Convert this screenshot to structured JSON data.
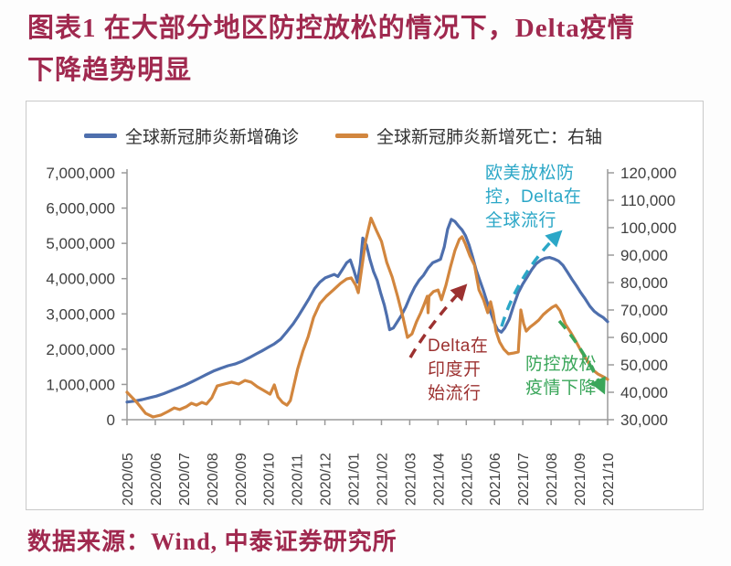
{
  "title": {
    "line1": "图表1 在大部分地区防控放松的情况下，Delta疫情",
    "line2": "下降趋势明显"
  },
  "source": {
    "text": "数据来源：Wind, 中泰证券研究所"
  },
  "colors": {
    "title_red": "#a0294f",
    "confirmed_blue": "#4e6fad",
    "deaths_orange": "#d2863e",
    "axis_text": "#404040",
    "axis_line": "#9a9a9a",
    "panel_border": "#c9c9c9"
  },
  "chart_data": {
    "type": "line",
    "grid": false,
    "legend_position": "top",
    "x_labels": [
      "2020/05",
      "2020/06",
      "2020/07",
      "2020/08",
      "2020/09",
      "2020/10",
      "2020/11",
      "2020/12",
      "2021/01",
      "2021/02",
      "2021/03",
      "2021/04",
      "2021/05",
      "2021/06",
      "2021/07",
      "2021/08",
      "2021/09",
      "2021/10"
    ],
    "left_axis": {
      "min": 0,
      "max": 7000000,
      "step": 1000000,
      "labels": [
        "7,000,000",
        "6,000,000",
        "5,000,000",
        "4,000,000",
        "3,000,000",
        "2,000,000",
        "1,000,000",
        "0"
      ]
    },
    "right_axis": {
      "min": 30000,
      "max": 120000,
      "step": 10000,
      "labels": [
        "120,000",
        "110,000",
        "100,000",
        "90,000",
        "80,000",
        "70,000",
        "60,000",
        "50,000",
        "40,000",
        "30,000"
      ]
    },
    "series": [
      {
        "name": "全球新冠肺炎新增确诊",
        "axis": "left",
        "color": "#4e6fad",
        "points": [
          [
            0.0,
            500000
          ],
          [
            0.28,
            530000
          ],
          [
            0.54,
            570000
          ],
          [
            0.79,
            620000
          ],
          [
            1.04,
            670000
          ],
          [
            1.3,
            740000
          ],
          [
            1.55,
            820000
          ],
          [
            1.8,
            900000
          ],
          [
            2.05,
            980000
          ],
          [
            2.31,
            1080000
          ],
          [
            2.56,
            1180000
          ],
          [
            2.81,
            1280000
          ],
          [
            3.06,
            1380000
          ],
          [
            3.32,
            1460000
          ],
          [
            3.57,
            1530000
          ],
          [
            3.82,
            1580000
          ],
          [
            4.08,
            1660000
          ],
          [
            4.33,
            1760000
          ],
          [
            4.58,
            1870000
          ],
          [
            4.77,
            1950000
          ],
          [
            4.99,
            2050000
          ],
          [
            5.21,
            2150000
          ],
          [
            5.43,
            2280000
          ],
          [
            5.66,
            2500000
          ],
          [
            5.88,
            2720000
          ],
          [
            6.07,
            2950000
          ],
          [
            6.26,
            3200000
          ],
          [
            6.45,
            3450000
          ],
          [
            6.64,
            3720000
          ],
          [
            6.82,
            3900000
          ],
          [
            7.01,
            4020000
          ],
          [
            7.2,
            4080000
          ],
          [
            7.33,
            4120000
          ],
          [
            7.46,
            4060000
          ],
          [
            7.61,
            4250000
          ],
          [
            7.77,
            4450000
          ],
          [
            7.9,
            4530000
          ],
          [
            8.02,
            4250000
          ],
          [
            8.15,
            3900000
          ],
          [
            8.25,
            4400000
          ],
          [
            8.34,
            5150000
          ],
          [
            8.47,
            4950000
          ],
          [
            8.59,
            4550000
          ],
          [
            8.72,
            4200000
          ],
          [
            8.85,
            3950000
          ],
          [
            8.97,
            3600000
          ],
          [
            9.1,
            3250000
          ],
          [
            9.19,
            2950000
          ],
          [
            9.29,
            2550000
          ],
          [
            9.42,
            2600000
          ],
          [
            9.54,
            2750000
          ],
          [
            9.7,
            2950000
          ],
          [
            9.86,
            3200000
          ],
          [
            10.02,
            3500000
          ],
          [
            10.17,
            3750000
          ],
          [
            10.33,
            3950000
          ],
          [
            10.49,
            4100000
          ],
          [
            10.65,
            4300000
          ],
          [
            10.81,
            4450000
          ],
          [
            10.96,
            4500000
          ],
          [
            11.09,
            4550000
          ],
          [
            11.22,
            4900000
          ],
          [
            11.34,
            5400000
          ],
          [
            11.47,
            5680000
          ],
          [
            11.6,
            5620000
          ],
          [
            11.72,
            5500000
          ],
          [
            11.85,
            5380000
          ],
          [
            11.97,
            5220000
          ],
          [
            12.1,
            4950000
          ],
          [
            12.23,
            4600000
          ],
          [
            12.35,
            4250000
          ],
          [
            12.48,
            3950000
          ],
          [
            12.61,
            3650000
          ],
          [
            12.73,
            3350000
          ],
          [
            12.86,
            3050000
          ],
          [
            12.99,
            2750000
          ],
          [
            13.11,
            2550000
          ],
          [
            13.24,
            2480000
          ],
          [
            13.36,
            2600000
          ],
          [
            13.52,
            2850000
          ],
          [
            13.68,
            3250000
          ],
          [
            13.84,
            3600000
          ],
          [
            14.0,
            3850000
          ],
          [
            14.16,
            4050000
          ],
          [
            14.31,
            4250000
          ],
          [
            14.47,
            4420000
          ],
          [
            14.63,
            4520000
          ],
          [
            14.79,
            4580000
          ],
          [
            14.95,
            4600000
          ],
          [
            15.1,
            4560000
          ],
          [
            15.26,
            4500000
          ],
          [
            15.42,
            4380000
          ],
          [
            15.58,
            4180000
          ],
          [
            15.74,
            3980000
          ],
          [
            15.89,
            3800000
          ],
          [
            16.05,
            3600000
          ],
          [
            16.21,
            3420000
          ],
          [
            16.37,
            3220000
          ],
          [
            16.52,
            3080000
          ],
          [
            16.68,
            2980000
          ],
          [
            16.84,
            2900000
          ],
          [
            17.0,
            2780000
          ]
        ]
      },
      {
        "name": "全球新冠肺炎新增死亡：右轴",
        "axis": "right",
        "color": "#d2863e",
        "points": [
          [
            0.0,
            40000
          ],
          [
            0.35,
            36300
          ],
          [
            0.66,
            32300
          ],
          [
            0.92,
            31000
          ],
          [
            1.2,
            31700
          ],
          [
            1.45,
            33000
          ],
          [
            1.67,
            34300
          ],
          [
            1.86,
            33700
          ],
          [
            2.09,
            34700
          ],
          [
            2.28,
            36000
          ],
          [
            2.46,
            35300
          ],
          [
            2.65,
            36300
          ],
          [
            2.81,
            35700
          ],
          [
            3.0,
            38000
          ],
          [
            3.19,
            42300
          ],
          [
            3.44,
            43000
          ],
          [
            3.7,
            43700
          ],
          [
            3.95,
            43000
          ],
          [
            4.17,
            44300
          ],
          [
            4.39,
            43700
          ],
          [
            4.61,
            42000
          ],
          [
            4.83,
            40700
          ],
          [
            5.06,
            39300
          ],
          [
            5.21,
            42700
          ],
          [
            5.34,
            38300
          ],
          [
            5.5,
            36300
          ],
          [
            5.66,
            35300
          ],
          [
            5.78,
            37000
          ],
          [
            6.03,
            48300
          ],
          [
            6.22,
            55000
          ],
          [
            6.41,
            60300
          ],
          [
            6.6,
            67300
          ],
          [
            6.82,
            72300
          ],
          [
            7.05,
            75000
          ],
          [
            7.3,
            77300
          ],
          [
            7.55,
            79700
          ],
          [
            7.77,
            81300
          ],
          [
            7.93,
            81700
          ],
          [
            8.09,
            79000
          ],
          [
            8.18,
            76300
          ],
          [
            8.31,
            85700
          ],
          [
            8.44,
            95000
          ],
          [
            8.63,
            103500
          ],
          [
            8.82,
            99000
          ],
          [
            9.0,
            95000
          ],
          [
            9.19,
            87300
          ],
          [
            9.38,
            82000
          ],
          [
            9.57,
            75000
          ],
          [
            9.76,
            67300
          ],
          [
            9.92,
            60000
          ],
          [
            10.08,
            61300
          ],
          [
            10.24,
            65700
          ],
          [
            10.39,
            69000
          ],
          [
            10.52,
            72300
          ],
          [
            10.62,
            75000
          ],
          [
            10.65,
            69000
          ],
          [
            10.68,
            75000
          ],
          [
            10.84,
            76700
          ],
          [
            11.0,
            77300
          ],
          [
            11.12,
            73700
          ],
          [
            11.28,
            79000
          ],
          [
            11.44,
            85700
          ],
          [
            11.6,
            91700
          ],
          [
            11.75,
            95700
          ],
          [
            11.85,
            96700
          ],
          [
            11.97,
            94000
          ],
          [
            12.13,
            89700
          ],
          [
            12.29,
            86300
          ],
          [
            12.45,
            77300
          ],
          [
            12.61,
            73700
          ],
          [
            12.76,
            69000
          ],
          [
            12.86,
            73000
          ],
          [
            12.95,
            69000
          ],
          [
            13.05,
            62300
          ],
          [
            13.18,
            58300
          ],
          [
            13.33,
            55700
          ],
          [
            13.49,
            54000
          ],
          [
            13.68,
            54300
          ],
          [
            13.84,
            54700
          ],
          [
            13.93,
            70000
          ],
          [
            14.03,
            65000
          ],
          [
            14.12,
            62300
          ],
          [
            14.25,
            63700
          ],
          [
            14.41,
            65000
          ],
          [
            14.56,
            66300
          ],
          [
            14.72,
            68300
          ],
          [
            14.88,
            69700
          ],
          [
            15.04,
            71000
          ],
          [
            15.17,
            71700
          ],
          [
            15.32,
            69700
          ],
          [
            15.51,
            64700
          ],
          [
            15.7,
            61700
          ],
          [
            15.89,
            58300
          ],
          [
            16.08,
            54700
          ],
          [
            16.27,
            51700
          ],
          [
            16.46,
            48300
          ],
          [
            16.65,
            46700
          ],
          [
            16.84,
            45700
          ],
          [
            17.0,
            44700
          ]
        ]
      }
    ],
    "annotations": [
      {
        "text": "欧美放松防\n控，Delta在\n全球流行",
        "color": "#2ba7c7",
        "arrow": {
          "from": [
            549,
            357
          ],
          "via": [
            566,
            300
          ],
          "to": [
            612,
            255
          ]
        }
      },
      {
        "text": "Delta在\n印度开\n始流行",
        "color": "#9c3130",
        "arrow": {
          "from": [
            449,
            391
          ],
          "via": [
            470,
            355
          ],
          "to": [
            508,
            314
          ]
        }
      },
      {
        "text": "防控放松\n疫情下降",
        "color": "#3aa65a",
        "arrow": {
          "from": [
            612,
            351
          ],
          "via": [
            638,
            380
          ],
          "to": [
            660,
            427
          ]
        }
      }
    ]
  }
}
